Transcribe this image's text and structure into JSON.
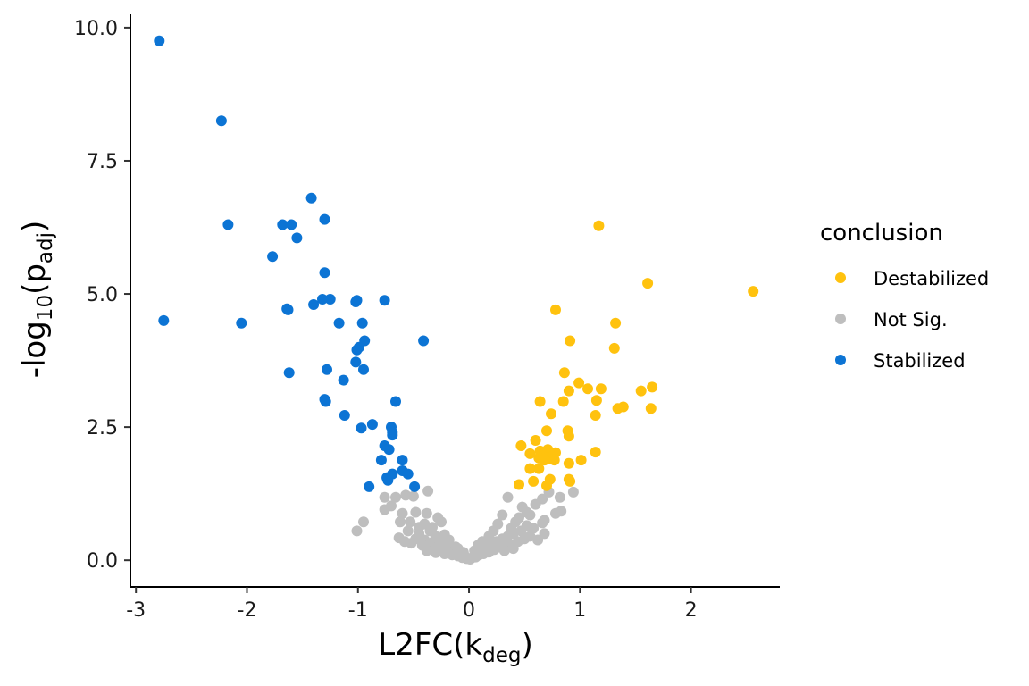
{
  "chart_data": {
    "type": "scatter",
    "title": "",
    "xlabel": {
      "main": "L2FC(k",
      "sub": "deg",
      "close": ")"
    },
    "ylabel": {
      "pre": "-log",
      "sub1": "10",
      "mid": "(p",
      "sub2": "adj",
      "close": ")"
    },
    "xlim": [
      -3.05,
      2.8
    ],
    "ylim": [
      -0.5,
      10.25
    ],
    "xticks": [
      -3,
      -2,
      -1,
      0,
      1,
      2
    ],
    "xtick_labels": [
      "-3",
      "-2",
      "-1",
      "0",
      "1",
      "2"
    ],
    "yticks": [
      0,
      2.5,
      5,
      7.5,
      10
    ],
    "ytick_labels": [
      "0.0",
      "2.5",
      "5.0",
      "7.5",
      "10.0"
    ],
    "grid": false,
    "legend": {
      "title": "conclusion",
      "placement": "right",
      "entries": [
        "Destabilized",
        "Not Sig.",
        "Stabilized"
      ]
    },
    "series": [
      {
        "name": "Stabilized",
        "color": "#0C74D4",
        "points": [
          [
            -2.79,
            9.75
          ],
          [
            -2.23,
            8.25
          ],
          [
            -2.17,
            6.3
          ],
          [
            -2.75,
            4.5
          ],
          [
            -2.05,
            4.45
          ],
          [
            -1.42,
            6.8
          ],
          [
            -1.68,
            6.3
          ],
          [
            -1.6,
            6.3
          ],
          [
            -1.55,
            6.05
          ],
          [
            -1.3,
            6.4
          ],
          [
            -1.77,
            5.7
          ],
          [
            -1.3,
            5.4
          ],
          [
            -1.32,
            4.9
          ],
          [
            -1.25,
            4.9
          ],
          [
            -1.4,
            4.8
          ],
          [
            -1.64,
            4.72
          ],
          [
            -1.63,
            4.7
          ],
          [
            -1.02,
            4.85
          ],
          [
            -1.01,
            4.88
          ],
          [
            -0.76,
            4.88
          ],
          [
            -1.17,
            4.45
          ],
          [
            -0.96,
            4.45
          ],
          [
            -0.41,
            4.12
          ],
          [
            -0.94,
            4.12
          ],
          [
            -0.99,
            4.0
          ],
          [
            -1.01,
            3.95
          ],
          [
            -1.02,
            3.72
          ],
          [
            -0.95,
            3.58
          ],
          [
            -1.28,
            3.58
          ],
          [
            -1.62,
            3.52
          ],
          [
            -1.13,
            3.38
          ],
          [
            -1.3,
            3.02
          ],
          [
            -1.29,
            2.98
          ],
          [
            -0.66,
            2.98
          ],
          [
            -1.12,
            2.72
          ],
          [
            -0.87,
            2.55
          ],
          [
            -0.97,
            2.48
          ],
          [
            -0.7,
            2.5
          ],
          [
            -0.69,
            2.4
          ],
          [
            -0.69,
            2.35
          ],
          [
            -0.76,
            2.15
          ],
          [
            -0.72,
            2.08
          ],
          [
            -0.6,
            1.88
          ],
          [
            -0.79,
            1.88
          ],
          [
            -0.69,
            1.62
          ],
          [
            -0.6,
            1.68
          ],
          [
            -0.55,
            1.62
          ],
          [
            -0.74,
            1.55
          ],
          [
            -0.73,
            1.5
          ],
          [
            -0.9,
            1.38
          ],
          [
            -0.49,
            1.38
          ]
        ]
      },
      {
        "name": "Destabilized",
        "color": "#FFC20E",
        "points": [
          [
            1.17,
            6.28
          ],
          [
            2.56,
            5.05
          ],
          [
            1.61,
            5.2
          ],
          [
            0.78,
            4.7
          ],
          [
            1.32,
            4.45
          ],
          [
            0.91,
            4.12
          ],
          [
            1.31,
            3.98
          ],
          [
            0.86,
            3.52
          ],
          [
            0.99,
            3.33
          ],
          [
            1.07,
            3.22
          ],
          [
            1.19,
            3.22
          ],
          [
            1.65,
            3.25
          ],
          [
            1.55,
            3.18
          ],
          [
            0.9,
            3.18
          ],
          [
            0.64,
            2.98
          ],
          [
            0.85,
            2.98
          ],
          [
            1.15,
            3.0
          ],
          [
            1.34,
            2.85
          ],
          [
            1.39,
            2.88
          ],
          [
            1.64,
            2.85
          ],
          [
            0.74,
            2.75
          ],
          [
            1.14,
            2.72
          ],
          [
            0.7,
            2.43
          ],
          [
            0.89,
            2.43
          ],
          [
            0.9,
            2.33
          ],
          [
            0.47,
            2.15
          ],
          [
            0.6,
            2.25
          ],
          [
            0.64,
            2.05
          ],
          [
            0.71,
            2.08
          ],
          [
            0.78,
            2.02
          ],
          [
            0.55,
            2.0
          ],
          [
            0.67,
            1.95
          ],
          [
            0.63,
            1.92
          ],
          [
            0.75,
            1.95
          ],
          [
            0.7,
            1.92
          ],
          [
            0.74,
            1.9
          ],
          [
            0.68,
            1.88
          ],
          [
            0.77,
            1.88
          ],
          [
            1.14,
            2.03
          ],
          [
            1.01,
            1.88
          ],
          [
            0.9,
            1.82
          ],
          [
            0.55,
            1.72
          ],
          [
            0.63,
            1.72
          ],
          [
            0.58,
            1.48
          ],
          [
            0.73,
            1.52
          ],
          [
            0.9,
            1.52
          ],
          [
            0.91,
            1.48
          ],
          [
            0.7,
            1.4
          ],
          [
            0.45,
            1.42
          ]
        ]
      },
      {
        "name": "Not Sig.",
        "color": "#BEBEBE",
        "points": [
          [
            -1.01,
            0.55
          ],
          [
            -0.95,
            0.72
          ],
          [
            -0.76,
            0.95
          ],
          [
            -0.76,
            1.18
          ],
          [
            -0.66,
            1.18
          ],
          [
            -0.57,
            1.22
          ],
          [
            -0.5,
            1.2
          ],
          [
            -0.37,
            1.3
          ],
          [
            -0.7,
            1.02
          ],
          [
            -0.6,
            0.88
          ],
          [
            -0.48,
            0.9
          ],
          [
            -0.38,
            0.88
          ],
          [
            -0.28,
            0.8
          ],
          [
            -0.25,
            0.72
          ],
          [
            -0.62,
            0.72
          ],
          [
            -0.53,
            0.72
          ],
          [
            -0.45,
            0.62
          ],
          [
            -0.35,
            0.55
          ],
          [
            -0.22,
            0.48
          ],
          [
            -0.63,
            0.42
          ],
          [
            -0.48,
            0.4
          ],
          [
            -0.4,
            0.38
          ],
          [
            -0.32,
            0.35
          ],
          [
            -0.25,
            0.32
          ],
          [
            -0.18,
            0.28
          ],
          [
            -0.12,
            0.25
          ],
          [
            -0.58,
            0.35
          ],
          [
            -0.52,
            0.32
          ],
          [
            -0.42,
            0.28
          ],
          [
            -0.34,
            0.25
          ],
          [
            -0.28,
            0.2
          ],
          [
            -0.2,
            0.18
          ],
          [
            -0.14,
            0.15
          ],
          [
            -0.08,
            0.12
          ],
          [
            -0.04,
            0.08
          ],
          [
            -0.38,
            0.18
          ],
          [
            -0.3,
            0.14
          ],
          [
            -0.22,
            0.12
          ],
          [
            -0.15,
            0.1
          ],
          [
            -0.1,
            0.08
          ],
          [
            -0.06,
            0.05
          ],
          [
            -0.02,
            0.03
          ],
          [
            -0.45,
            0.5
          ],
          [
            -0.55,
            0.55
          ],
          [
            -0.3,
            0.45
          ],
          [
            -0.18,
            0.38
          ],
          [
            -0.1,
            0.22
          ],
          [
            -0.05,
            0.15
          ],
          [
            -0.4,
            0.68
          ],
          [
            -0.33,
            0.62
          ],
          [
            0.01,
            0.02
          ],
          [
            0.03,
            0.05
          ],
          [
            0.06,
            0.06
          ],
          [
            0.09,
            0.1
          ],
          [
            0.13,
            0.12
          ],
          [
            0.18,
            0.15
          ],
          [
            0.23,
            0.2
          ],
          [
            0.28,
            0.25
          ],
          [
            0.33,
            0.3
          ],
          [
            0.38,
            0.28
          ],
          [
            0.44,
            0.35
          ],
          [
            0.5,
            0.4
          ],
          [
            0.55,
            0.45
          ],
          [
            0.62,
            0.38
          ],
          [
            0.68,
            0.5
          ],
          [
            0.58,
            0.6
          ],
          [
            0.52,
            0.65
          ],
          [
            0.47,
            0.55
          ],
          [
            0.4,
            0.5
          ],
          [
            0.35,
            0.45
          ],
          [
            0.3,
            0.4
          ],
          [
            0.25,
            0.35
          ],
          [
            0.2,
            0.3
          ],
          [
            0.15,
            0.22
          ],
          [
            0.1,
            0.18
          ],
          [
            0.45,
            0.8
          ],
          [
            0.52,
            0.9
          ],
          [
            0.48,
            1.0
          ],
          [
            0.6,
            1.05
          ],
          [
            0.66,
            1.15
          ],
          [
            0.72,
            1.28
          ],
          [
            0.82,
            1.18
          ],
          [
            0.94,
            1.28
          ],
          [
            0.78,
            0.88
          ],
          [
            0.83,
            0.92
          ],
          [
            0.66,
            0.7
          ],
          [
            0.68,
            0.75
          ],
          [
            0.55,
            0.85
          ],
          [
            0.42,
            0.72
          ],
          [
            0.38,
            0.6
          ],
          [
            0.3,
            0.85
          ],
          [
            0.35,
            1.18
          ],
          [
            0.26,
            0.68
          ],
          [
            0.22,
            0.55
          ],
          [
            0.18,
            0.45
          ],
          [
            0.12,
            0.35
          ],
          [
            0.08,
            0.28
          ],
          [
            0.05,
            0.18
          ],
          [
            0.4,
            0.22
          ],
          [
            0.32,
            0.18
          ]
        ]
      }
    ]
  }
}
